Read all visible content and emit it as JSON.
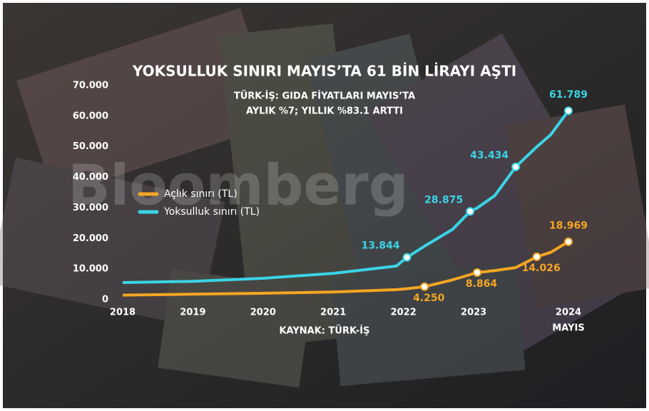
{
  "chart_data": {
    "type": "line",
    "title": "YOKSULLUK SINIRI MAYIS’TA 61 BİN LİRAYI AŞTI",
    "subtitle": [
      "TÜRK-İŞ: GIDA FİYATLARI MAYIS’TA",
      "AYLIK %7; YILLIK %83.1 ARTTI"
    ],
    "source": "KAYNAK: TÜRK-İŞ",
    "x_note": "MAYIS",
    "watermark": "Bloomberg",
    "x": [
      2018,
      2019,
      2020,
      2021,
      2021.9,
      2022.05,
      2022.3,
      2022.7,
      2022.95,
      2023.05,
      2023.3,
      2023.6,
      2023.9,
      2024.1,
      2024.35
    ],
    "series": [
      {
        "name": "Açlık sınırı (TL)",
        "color": "#f5a623",
        "values": [
          1500,
          1800,
          2100,
          2500,
          3300,
          3600,
          4250,
          6500,
          8200,
          8864,
          9500,
          10500,
          14026,
          15500,
          18969
        ],
        "value_labels": [
          null,
          null,
          null,
          null,
          null,
          null,
          "4.250",
          null,
          null,
          "8.864",
          null,
          null,
          "14.026",
          null,
          "18.969"
        ]
      },
      {
        "name": "Yoksulluk sınırı (TL)",
        "color": "#3ad4e6",
        "values": [
          5600,
          6000,
          7000,
          8600,
          11000,
          13844,
          17500,
          23000,
          28875,
          30000,
          34000,
          43434,
          50000,
          54000,
          61789
        ],
        "value_labels": [
          null,
          null,
          null,
          null,
          null,
          "13.844",
          null,
          null,
          "28.875",
          null,
          null,
          "43.434",
          null,
          null,
          "61.789"
        ]
      }
    ],
    "xlim": [
      2018,
      2024.35
    ],
    "xticks": [
      2018,
      2019,
      2020,
      2021,
      2022,
      2023,
      {
        "value": 2024.35,
        "label": "2024"
      }
    ],
    "ylim": [
      0,
      70000
    ],
    "yticks": [
      {
        "value": 0,
        "label": "0"
      },
      {
        "value": 10000,
        "label": "10.000"
      },
      {
        "value": 20000,
        "label": "20.000"
      },
      {
        "value": 30000,
        "label": "30.000"
      },
      {
        "value": 40000,
        "label": "40.000"
      },
      {
        "value": 50000,
        "label": "50.000"
      },
      {
        "value": 60000,
        "label": "60.000"
      },
      {
        "value": 70000,
        "label": "70.000"
      }
    ],
    "grid": false,
    "legend": "left"
  }
}
